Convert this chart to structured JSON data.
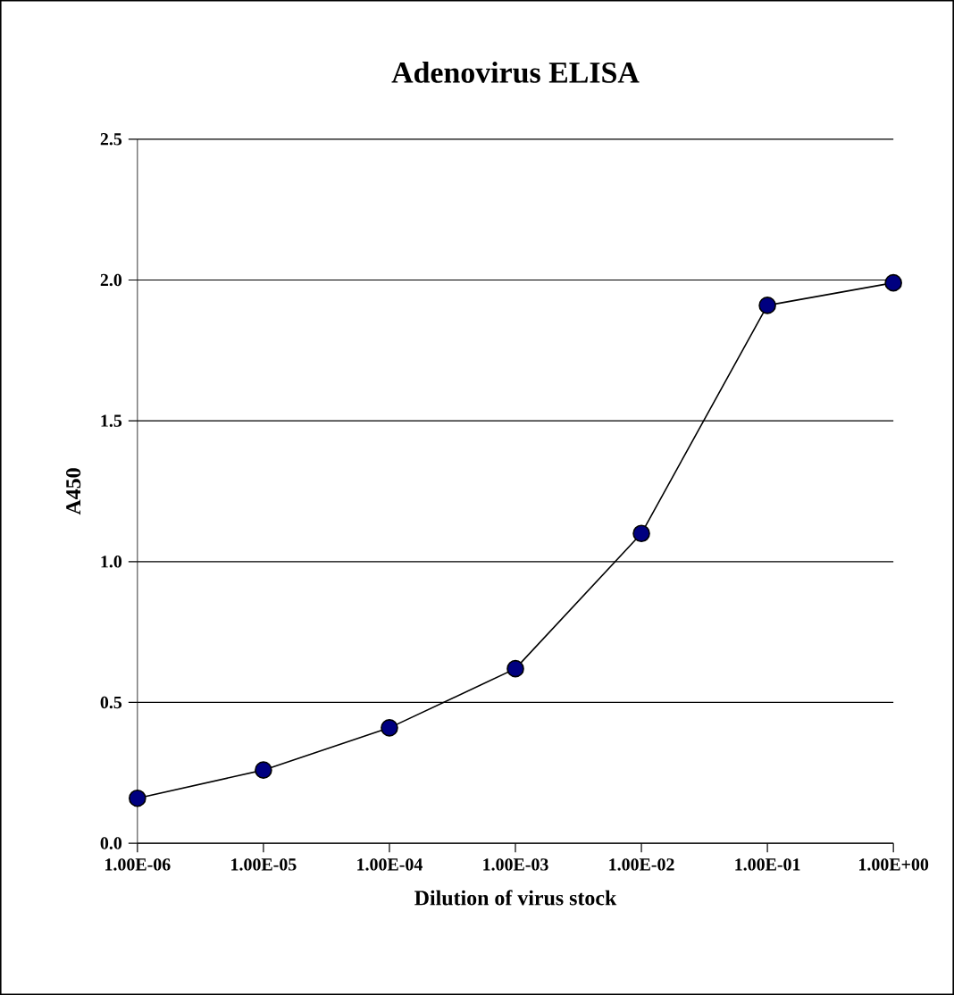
{
  "chart_data": {
    "type": "line",
    "title": "Adenovirus ELISA",
    "xlabel": "Dilution of virus stock",
    "ylabel": "A450",
    "categories": [
      "1.00E-06",
      "1.00E-05",
      "1.00E-04",
      "1.00E-03",
      "1.00E-02",
      "1.00E-01",
      "1.00E+00"
    ],
    "series": [
      {
        "color": "#000080",
        "values": [
          0.16,
          0.26,
          0.41,
          0.62,
          1.1,
          1.91,
          1.99
        ]
      }
    ],
    "ylim": [
      0,
      2.5
    ],
    "yticks": [
      {
        "value": 0,
        "label": "0.0"
      },
      {
        "value": 0.5,
        "label": "0.5"
      },
      {
        "value": 1,
        "label": "1.0"
      },
      {
        "value": 1.5,
        "label": "1.5"
      },
      {
        "value": 2,
        "label": "2.0"
      },
      {
        "value": 2.5,
        "label": "2.5"
      }
    ],
    "grid": "y",
    "marker": "circle",
    "line_style": "solid"
  }
}
